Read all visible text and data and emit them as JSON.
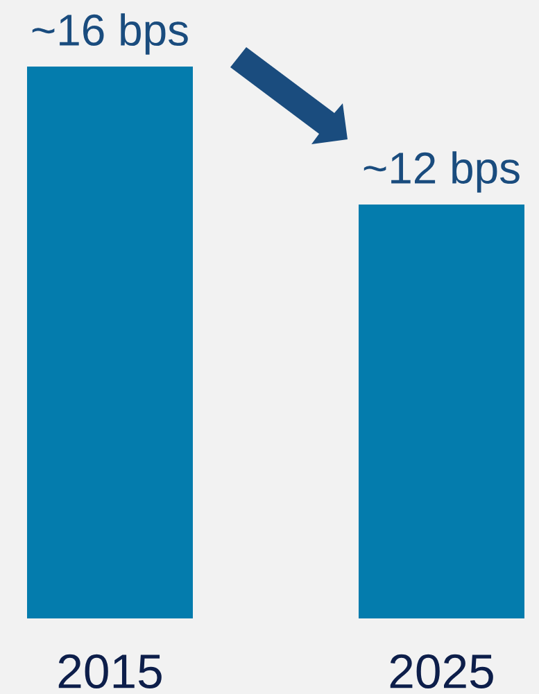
{
  "chart_data": {
    "type": "bar",
    "categories": [
      "2015",
      "2025"
    ],
    "values": [
      16,
      12
    ],
    "value_labels": [
      "~16 bps",
      "~12 bps"
    ],
    "color": "#047cad",
    "tick_labels": "x",
    "grid": false,
    "legend": false
  }
}
